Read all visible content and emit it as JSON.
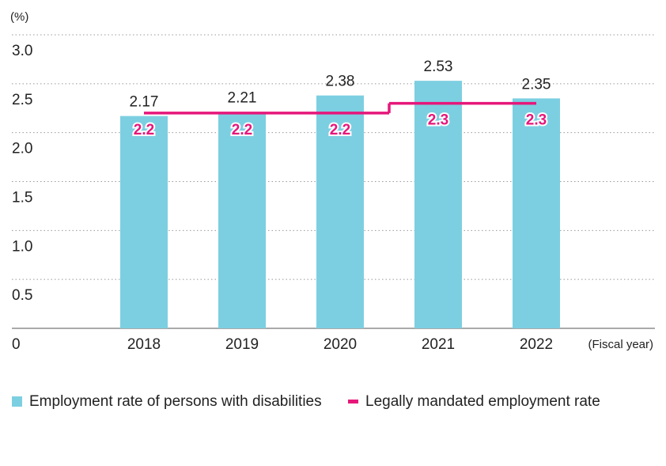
{
  "chart_data": {
    "type": "bar",
    "y_unit": "(%)",
    "x_unit": "(Fiscal year)",
    "categories": [
      "2018",
      "2019",
      "2020",
      "2021",
      "2022"
    ],
    "series": [
      {
        "name": "Employment rate of persons with disabilities",
        "color": "#7ccfe1",
        "type": "bar",
        "values": [
          2.17,
          2.21,
          2.38,
          2.53,
          2.35
        ]
      },
      {
        "name": "Legally mandated employment rate",
        "color": "#e6177a",
        "type": "step",
        "values": [
          2.2,
          2.2,
          2.2,
          2.3,
          2.3
        ]
      }
    ],
    "ylim": [
      0,
      3
    ],
    "yticks": [
      0,
      0.5,
      {
        "value": 1,
        "label": "1.0"
      },
      1.5,
      {
        "value": 2,
        "label": "2.0"
      },
      2.5,
      {
        "value": 3,
        "label": "3.0"
      }
    ],
    "grid": true
  }
}
